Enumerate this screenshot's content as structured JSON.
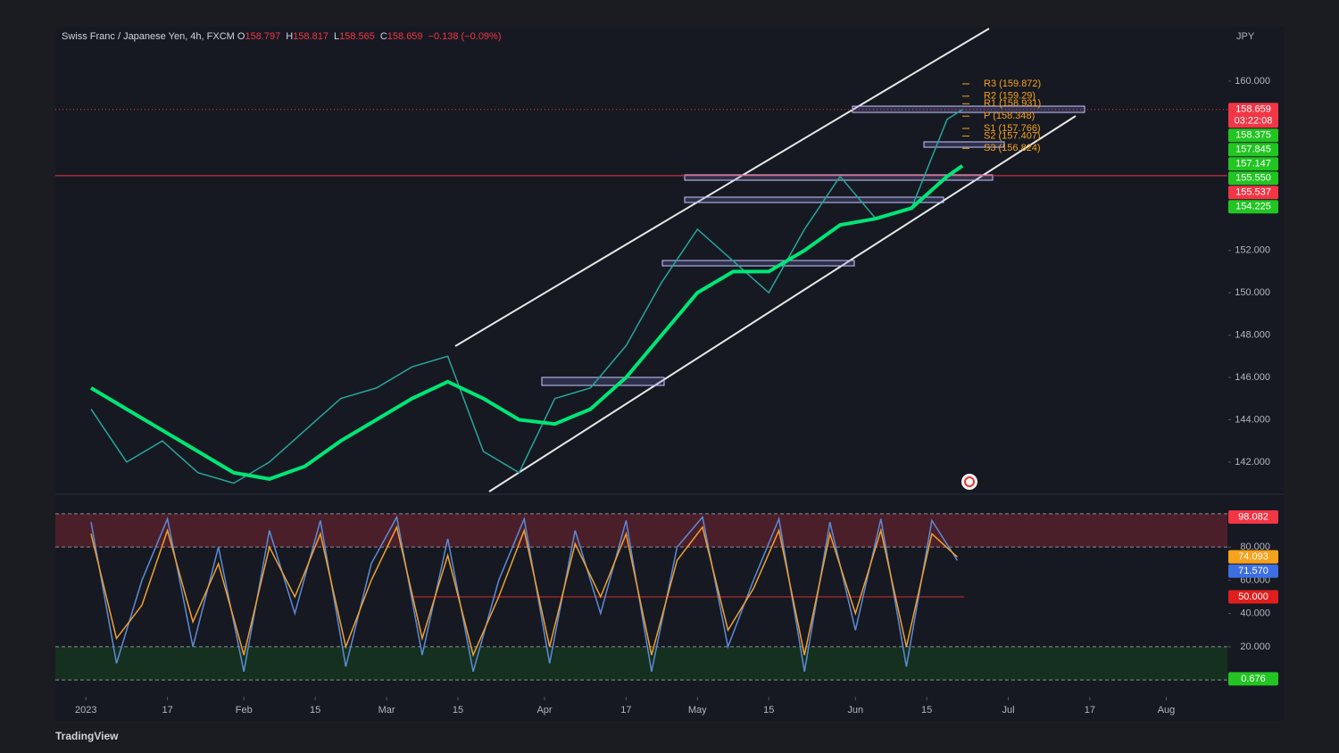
{
  "chart_data": [
    {
      "type": "line",
      "title": "Swiss Franc / Japanese Yen, 4h, FXCM",
      "ohlc_labels": [
        "O",
        "H",
        "L",
        "C"
      ],
      "ohlc": [
        158.797,
        158.817,
        158.565,
        158.659
      ],
      "change": {
        "value": -0.138,
        "label": "−0.138 (−0.09%)"
      },
      "y_unit": "JPY",
      "countdown": "03:22:08",
      "x": [
        "2023-01-02",
        "2023-01-09",
        "2023-01-16",
        "2023-01-23",
        "2023-01-30",
        "2023-02-06",
        "2023-02-13",
        "2023-02-20",
        "2023-02-27",
        "2023-03-06",
        "2023-03-13",
        "2023-03-20",
        "2023-03-27",
        "2023-04-03",
        "2023-04-10",
        "2023-04-17",
        "2023-04-24",
        "2023-05-01",
        "2023-05-08",
        "2023-05-15",
        "2023-05-22",
        "2023-05-29",
        "2023-06-05",
        "2023-06-12",
        "2023-06-19",
        "2023-06-22"
      ],
      "series": [
        {
          "color": "#26a69a",
          "values": [
            144.5,
            142.0,
            143.0,
            141.5,
            141.0,
            142.0,
            143.5,
            145.0,
            145.5,
            146.5,
            147.0,
            142.5,
            141.5,
            145.0,
            145.5,
            147.5,
            150.5,
            153.0,
            151.5,
            150.0,
            153.0,
            155.5,
            153.5,
            154.0,
            158.2,
            158.659
          ]
        },
        {
          "color": "#00e676",
          "values": [
            145.5,
            144.5,
            143.5,
            142.5,
            141.5,
            141.2,
            141.8,
            143.0,
            144.0,
            145.0,
            145.8,
            145.0,
            144.0,
            143.8,
            144.5,
            146.0,
            148.0,
            150.0,
            151.0,
            151.0,
            152.0,
            153.2,
            153.5,
            154.0,
            155.5,
            156.0
          ]
        }
      ],
      "xlim": [
        "2022-12-26",
        "2023-08-13"
      ],
      "xticks": [
        {
          "value": "2023-01-01",
          "label": "2023"
        },
        {
          "value": "2023-01-17",
          "label": "17"
        },
        {
          "value": "2023-02-01",
          "label": "Feb"
        },
        {
          "value": "2023-02-15",
          "label": "15"
        },
        {
          "value": "2023-03-01",
          "label": "Mar"
        },
        {
          "value": "2023-03-15",
          "label": "15"
        },
        {
          "value": "2023-04-01",
          "label": "Apr"
        },
        {
          "value": "2023-04-17",
          "label": "17"
        },
        {
          "value": "2023-05-01",
          "label": "May"
        },
        {
          "value": "2023-05-15",
          "label": "15"
        },
        {
          "value": "2023-06-01",
          "label": "Jun"
        },
        {
          "value": "2023-06-15",
          "label": "15"
        },
        {
          "value": "2023-07-01",
          "label": "Jul"
        },
        {
          "value": "2023-07-17",
          "label": "17"
        },
        {
          "value": "2023-08-01",
          "label": "Aug"
        }
      ],
      "ylim": [
        140.52,
        162.57
      ],
      "yticks": [
        {
          "value": 142,
          "label": "142.000"
        },
        {
          "value": 144,
          "label": "144.000"
        },
        {
          "value": 146,
          "label": "146.000"
        },
        {
          "value": 148,
          "label": "148.000"
        },
        {
          "value": 150,
          "label": "150.000"
        },
        {
          "value": 152,
          "label": "152.000"
        },
        {
          "value": 160,
          "label": "160.000"
        }
      ],
      "grid": false,
      "hlines": [
        {
          "value": 155.537,
          "style": "solid",
          "color": "#f23645"
        },
        {
          "value": 158.659,
          "style": "dotted",
          "color": "#f23645"
        }
      ],
      "pivots": [
        {
          "value": 159.872,
          "label": "R3 (159.872)"
        },
        {
          "value": 159.29,
          "label": "R2 (159.29)"
        },
        {
          "value": 158.931,
          "label": "R1 (158.931)"
        },
        {
          "value": 158.348,
          "label": "P (158.348)"
        },
        {
          "value": 157.766,
          "label": "S1 (157.766)"
        },
        {
          "value": 157.407,
          "label": "S2 (157.407)"
        },
        {
          "value": 156.824,
          "label": "S3 (156.824)"
        }
      ],
      "pivot_color": "#f7a21b",
      "badges": [
        {
          "value": 158.659,
          "label": "158.659",
          "color": "#f23645"
        },
        {
          "value": 158.375,
          "label": "158.375",
          "color": "#22c522"
        },
        {
          "value": 157.845,
          "label": "157.845",
          "color": "#22c522"
        },
        {
          "value": 157.147,
          "label": "157.147",
          "color": "#22c522"
        },
        {
          "value": 155.55,
          "label": "155.550",
          "color": "#22c522"
        },
        {
          "value": 155.537,
          "label": "155.537",
          "color": "#f23645"
        },
        {
          "value": 154.225,
          "label": "154.225",
          "color": "#22c522"
        }
      ]
    },
    {
      "type": "line",
      "x": [
        "2023-01-02",
        "2023-01-07",
        "2023-01-12",
        "2023-01-17",
        "2023-01-22",
        "2023-01-27",
        "2023-02-01",
        "2023-02-06",
        "2023-02-11",
        "2023-02-16",
        "2023-02-21",
        "2023-02-26",
        "2023-03-03",
        "2023-03-08",
        "2023-03-13",
        "2023-03-18",
        "2023-03-23",
        "2023-03-28",
        "2023-04-02",
        "2023-04-07",
        "2023-04-12",
        "2023-04-17",
        "2023-04-22",
        "2023-04-27",
        "2023-05-02",
        "2023-05-07",
        "2023-05-12",
        "2023-05-17",
        "2023-05-22",
        "2023-05-27",
        "2023-06-01",
        "2023-06-06",
        "2023-06-11",
        "2023-06-16",
        "2023-06-21"
      ],
      "series": [
        {
          "color": "#5b8bd6",
          "values": [
            95,
            10,
            60,
            97,
            20,
            80,
            5,
            90,
            40,
            96,
            8,
            70,
            98,
            15,
            85,
            5,
            60,
            97,
            10,
            90,
            40,
            96,
            5,
            80,
            98,
            20,
            60,
            97,
            5,
            95,
            30,
            97,
            8,
            96,
            72
          ]
        },
        {
          "color": "#f0a030",
          "values": [
            88,
            25,
            45,
            90,
            35,
            70,
            15,
            80,
            50,
            88,
            20,
            60,
            92,
            25,
            75,
            15,
            50,
            90,
            20,
            82,
            50,
            88,
            15,
            72,
            92,
            30,
            55,
            90,
            15,
            88,
            40,
            90,
            20,
            88,
            74
          ]
        }
      ],
      "ylim": [
        -9.6,
        110.7
      ],
      "yticks": [
        {
          "value": 20,
          "label": "20.000"
        },
        {
          "value": 40,
          "label": "40.000"
        },
        {
          "value": 60,
          "label": "60.000"
        },
        {
          "value": 80,
          "label": "80.000"
        }
      ],
      "levels": [
        100,
        80,
        20,
        0
      ],
      "bands": [
        {
          "from": 80,
          "to": 100,
          "color": "#4a1f2a"
        },
        {
          "from": 0,
          "to": 20,
          "color": "#15301f"
        }
      ],
      "midline": {
        "value": 50,
        "color": "#d32f2f"
      },
      "badges": [
        {
          "value": 98.082,
          "label": "98.082",
          "color": "#f23645"
        },
        {
          "value": 74.093,
          "label": "74.093",
          "color": "#f7a21b"
        },
        {
          "value": 71.57,
          "label": "71.570",
          "color": "#3d6fe0"
        },
        {
          "value": 50,
          "label": "50.000",
          "color": "#e01e1e"
        },
        {
          "value": 0.676,
          "label": "0.676",
          "color": "#22c522"
        }
      ]
    }
  ],
  "footer": {
    "brand": "TradingView"
  }
}
